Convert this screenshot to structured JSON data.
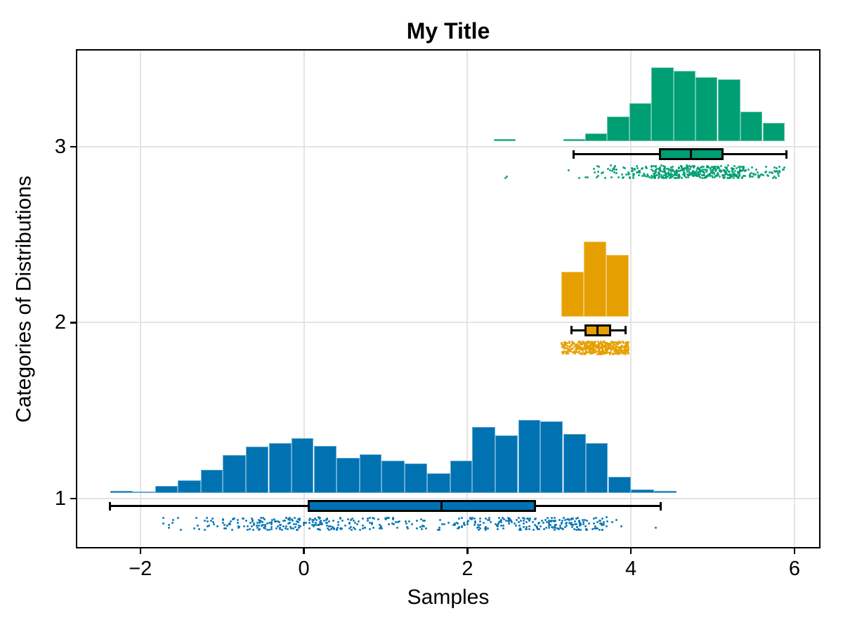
{
  "chart_data": {
    "type": "raincloud",
    "title": "My Title",
    "xlabel": "Samples",
    "ylabel": "Categories of Distributions",
    "x_ticks": [
      -2,
      0,
      2,
      4,
      6
    ],
    "y_ticks": [
      1,
      2,
      3
    ],
    "x_range": [
      -2.78,
      6.31
    ],
    "y_range": [
      0.72,
      3.55
    ],
    "grid": true,
    "grid_color": "#e4e4e4",
    "frame_color": "#000000",
    "background": "#ffffff",
    "legend": "none",
    "per_category_layout": "histogram above category line, boxplot and jittered scatter strip below",
    "categories": [
      {
        "label": "1",
        "y": 1,
        "color": "#0072b2",
        "histogram": {
          "height_unit": "px",
          "bins": [
            [
              -2.37,
              -2.09,
              3
            ],
            [
              -2.09,
              -1.82,
              1.5
            ],
            [
              -1.82,
              -1.54,
              10
            ],
            [
              -1.54,
              -1.26,
              18
            ],
            [
              -1.26,
              -0.99,
              33
            ],
            [
              -0.99,
              -0.71,
              54
            ],
            [
              -0.71,
              -0.43,
              66
            ],
            [
              -0.43,
              -0.15,
              71
            ],
            [
              -0.15,
              0.12,
              78
            ],
            [
              0.12,
              0.4,
              67
            ],
            [
              0.4,
              0.68,
              50
            ],
            [
              0.68,
              0.95,
              55
            ],
            [
              0.95,
              1.23,
              46
            ],
            [
              1.23,
              1.51,
              42
            ],
            [
              1.51,
              1.79,
              28
            ],
            [
              1.79,
              2.06,
              46
            ],
            [
              2.06,
              2.34,
              94
            ],
            [
              2.34,
              2.62,
              82
            ],
            [
              2.62,
              2.89,
              104
            ],
            [
              2.89,
              3.17,
              102
            ],
            [
              3.17,
              3.45,
              84
            ],
            [
              3.45,
              3.72,
              71
            ],
            [
              3.72,
              4.0,
              23
            ],
            [
              4.0,
              4.28,
              5
            ],
            [
              4.28,
              4.56,
              2.5
            ]
          ]
        },
        "boxplot": {
          "whisker_low": -2.37,
          "q1": 0.05,
          "median": 1.68,
          "q3": 2.84,
          "whisker_high": 4.36
        },
        "scatter": {
          "n": 500,
          "x_min": -2.4,
          "x_max": 4.36,
          "style": "jitter-strip"
        }
      },
      {
        "label": "2",
        "y": 2,
        "color": "#e69f00",
        "histogram": {
          "height_unit": "px",
          "bins": [
            [
              3.15,
              3.42,
              64
            ],
            [
              3.42,
              3.7,
              107
            ],
            [
              3.7,
              3.97,
              88
            ]
          ]
        },
        "boxplot": {
          "whisker_low": 3.27,
          "q1": 3.43,
          "median": 3.59,
          "q3": 3.76,
          "whisker_high": 3.93
        },
        "scatter": {
          "n": 450,
          "x_min": 3.2,
          "x_max": 3.93,
          "style": "jitter-strip"
        }
      },
      {
        "label": "3",
        "y": 3,
        "color": "#009e73",
        "histogram": {
          "height_unit": "px",
          "bins": [
            [
              2.32,
              2.59,
              3
            ],
            [
              3.17,
              3.44,
              3
            ],
            [
              3.44,
              3.71,
              11
            ],
            [
              3.71,
              3.98,
              35
            ],
            [
              3.98,
              4.25,
              54
            ],
            [
              4.25,
              4.52,
              105
            ],
            [
              4.52,
              4.79,
              100
            ],
            [
              4.79,
              5.06,
              91
            ],
            [
              5.06,
              5.34,
              88
            ],
            [
              5.34,
              5.61,
              42
            ],
            [
              5.61,
              5.88,
              26
            ]
          ]
        },
        "boxplot": {
          "whisker_low": 3.3,
          "q1": 4.34,
          "median": 4.73,
          "q3": 5.13,
          "whisker_high": 5.9
        },
        "scatter": {
          "n": 470,
          "x_min": 2.4,
          "x_max": 5.9,
          "style": "jitter-strip"
        }
      }
    ]
  }
}
